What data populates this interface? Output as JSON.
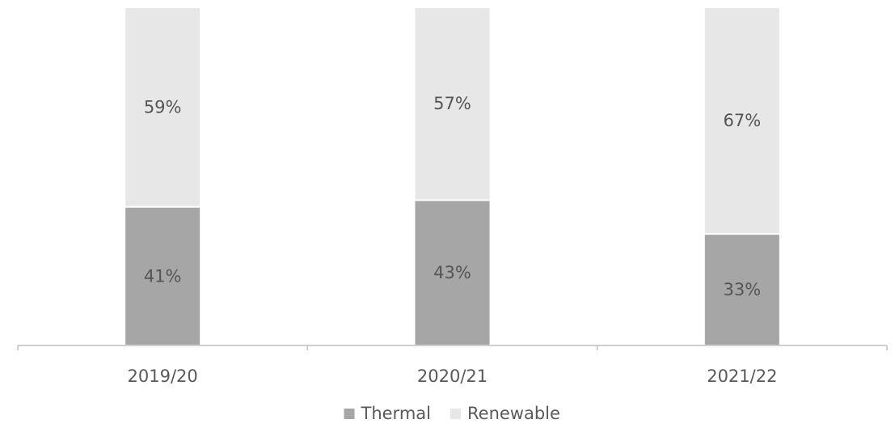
{
  "chart_data": {
    "type": "bar",
    "stacked": true,
    "categories": [
      "2019/20",
      "2020/21",
      "2021/22"
    ],
    "series": [
      {
        "name": "Thermal",
        "values": [
          41,
          43,
          33
        ],
        "labels": [
          "41%",
          "43%",
          "33%"
        ],
        "color": "#a6a6a6"
      },
      {
        "name": "Renewable",
        "values": [
          59,
          57,
          67
        ],
        "labels": [
          "59%",
          "57%",
          "67%"
        ],
        "color": "#e7e7e7"
      }
    ],
    "ylim": [
      0,
      100
    ],
    "grid": false,
    "legend_position": "bottom"
  }
}
